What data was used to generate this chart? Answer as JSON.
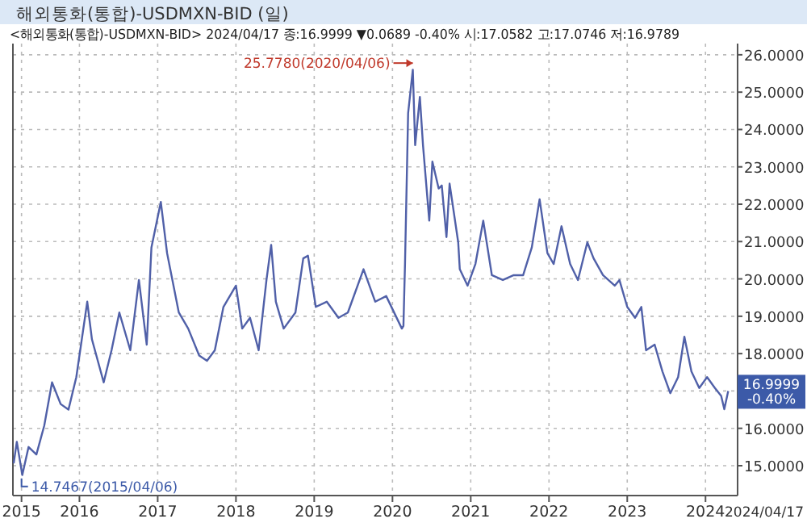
{
  "chart_data": {
    "type": "line",
    "title": "해외통화(통합)-USDMXN-BID (일)",
    "annotations": [
      "<해외통화(통합)-USDMXN-BID> 2024/04/17 종:16.9999 ▼0.0689 -0.40% 시:17.0582 고:17.0746 저:16.9789",
      {
        "text": "25.7780(2020/04/06)",
        "x": 2020.26,
        "y": 25.778
      },
      {
        "text": "14.7467(2015/04/06)",
        "x": 2015.26,
        "y": 14.7467
      },
      {
        "text": "16.9999 -0.40%",
        "x": 2024.29,
        "y": 16.9999
      },
      "2024/04/17"
    ],
    "x": [
      2015.16,
      2015.2,
      2015.27,
      2015.35,
      2015.45,
      2015.55,
      2015.65,
      2015.76,
      2015.86,
      2015.96,
      2016.1,
      2016.16,
      2016.31,
      2016.41,
      2016.51,
      2016.65,
      2016.76,
      2016.86,
      2016.92,
      2017.04,
      2017.12,
      2017.27,
      2017.39,
      2017.53,
      2017.63,
      2017.73,
      2017.84,
      2018.0,
      2018.08,
      2018.18,
      2018.29,
      2018.39,
      2018.45,
      2018.51,
      2018.61,
      2018.76,
      2018.86,
      2018.92,
      2019.02,
      2019.16,
      2019.31,
      2019.43,
      2019.63,
      2019.78,
      2019.92,
      2020.12,
      2020.14,
      2020.16,
      2020.2,
      2020.26,
      2020.29,
      2020.35,
      2020.39,
      2020.47,
      2020.51,
      2020.59,
      2020.63,
      2020.69,
      2020.73,
      2020.84,
      2020.86,
      2020.96,
      2021.06,
      2021.16,
      2021.27,
      2021.41,
      2021.55,
      2021.67,
      2021.78,
      2021.88,
      2021.98,
      2022.06,
      2022.16,
      2022.27,
      2022.37,
      2022.49,
      2022.57,
      2022.69,
      2022.84,
      2022.9,
      2023.0,
      2023.1,
      2023.18,
      2023.24,
      2023.35,
      2023.45,
      2023.55,
      2023.65,
      2023.73,
      2023.82,
      2023.92,
      2024.02,
      2024.12,
      2024.2,
      2024.24,
      2024.29
    ],
    "series": [
      {
        "color": "#5060a8",
        "values": [
          15.06,
          15.64,
          14.75,
          15.5,
          15.3,
          16.07,
          17.23,
          16.65,
          16.5,
          17.37,
          19.39,
          18.38,
          17.23,
          18.09,
          19.1,
          18.09,
          19.97,
          18.24,
          20.84,
          22.06,
          20.69,
          19.1,
          18.67,
          17.95,
          17.81,
          18.09,
          19.25,
          19.82,
          18.67,
          18.96,
          18.09,
          19.97,
          20.91,
          19.39,
          18.67,
          19.1,
          20.55,
          20.62,
          19.25,
          19.39,
          18.96,
          19.1,
          20.26,
          19.39,
          19.54,
          18.67,
          18.74,
          20.4,
          24.44,
          25.6,
          23.58,
          24.87,
          23.58,
          21.56,
          23.14,
          22.42,
          22.5,
          21.12,
          22.55,
          20.98,
          20.26,
          19.82,
          20.4,
          21.56,
          20.1,
          19.97,
          20.1,
          20.1,
          20.84,
          22.13,
          20.69,
          20.4,
          21.41,
          20.4,
          19.97,
          20.98,
          20.55,
          20.1,
          19.82,
          19.97,
          19.25,
          18.96,
          19.25,
          18.09,
          18.24,
          17.52,
          16.94,
          17.37,
          18.45,
          17.52,
          17.08,
          17.37,
          17.08,
          16.87,
          16.51,
          17.0
        ]
      }
    ],
    "xlim": [
      2015.15,
      2024.41
    ],
    "ylim": [
      14.2,
      26.3
    ],
    "xticks": [
      {
        "value": 2015.26,
        "label": "2015"
      },
      {
        "value": 2016,
        "label": "2016"
      },
      {
        "value": 2017,
        "label": "2017"
      },
      {
        "value": 2018,
        "label": "2018"
      },
      {
        "value": 2019,
        "label": "2019"
      },
      {
        "value": 2020,
        "label": "2020"
      },
      {
        "value": 2021,
        "label": "2021"
      },
      {
        "value": 2022,
        "label": "2022"
      },
      {
        "value": 2023,
        "label": "2023"
      },
      {
        "value": 2024,
        "label": "2024"
      }
    ],
    "yticks": [
      {
        "value": 15,
        "label": "15.0000"
      },
      {
        "value": 16,
        "label": "16.0000"
      },
      {
        "value": 17,
        "label": null
      },
      {
        "value": 18,
        "label": "18.0000"
      },
      {
        "value": 19,
        "label": "19.0000"
      },
      {
        "value": 20,
        "label": "20.0000"
      },
      {
        "value": 21,
        "label": "21.0000"
      },
      {
        "value": 22,
        "label": "22.0000"
      },
      {
        "value": 23,
        "label": "23.0000"
      },
      {
        "value": 24,
        "label": "24.0000"
      },
      {
        "value": 25,
        "label": "25.0000"
      },
      {
        "value": 26,
        "label": "26.0000"
      }
    ],
    "grid": true
  }
}
